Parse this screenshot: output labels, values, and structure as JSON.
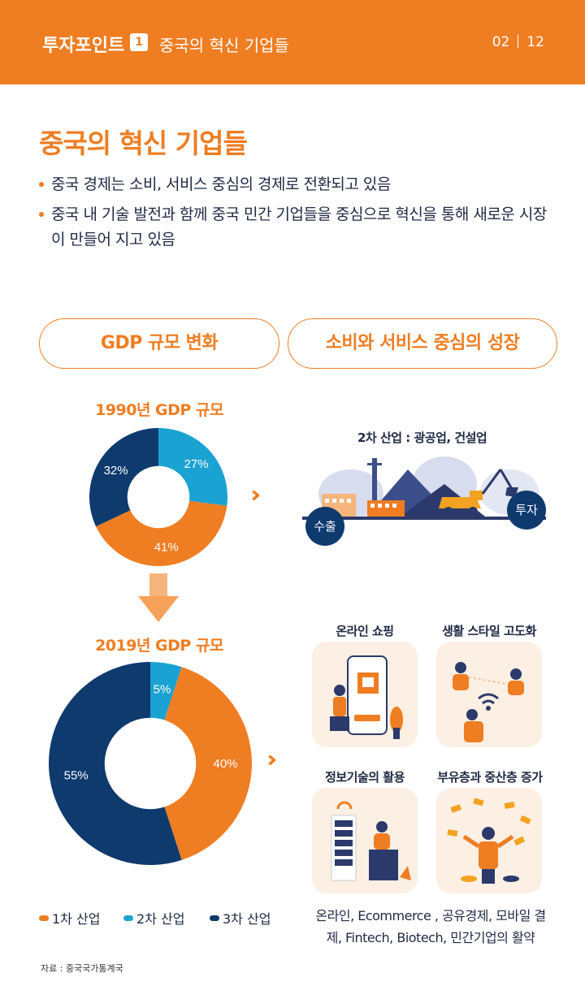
{
  "header": {
    "title": "투자포인트",
    "badge": "1",
    "subtitle": "중국의 혁신 기업들",
    "page_current": "02",
    "page_total": "12"
  },
  "main": {
    "title": "중국의 혁신 기업들",
    "bullets": [
      "중국 경제는 소비, 서비스 중심의 경제로 전환되고 있음",
      "중국 내 기술 발전과 함께 중국 민간 기업들을 중심으로 혁신을 통해 새로운 시장이 만들어 지고 있음"
    ]
  },
  "pills": {
    "left": "GDP 규모 변화",
    "right": "소비와 서비스 중심의 성장"
  },
  "chart_titles": {
    "c1990": "1990년 GDP 규모",
    "c2019": "2019년 GDP 규모"
  },
  "chart_data": [
    {
      "type": "pie",
      "title": "1990년 GDP 규모",
      "categories": [
        "1차 산업",
        "2차 산업",
        "3차 산업"
      ],
      "values": [
        41,
        27,
        32
      ],
      "labels": [
        "41%",
        "27%",
        "32%"
      ]
    },
    {
      "type": "pie",
      "title": "2019년 GDP 규모",
      "categories": [
        "1차 산업",
        "2차 산업",
        "3차 산업"
      ],
      "values": [
        40,
        5,
        55
      ],
      "labels": [
        "40%",
        "5%",
        "55%"
      ]
    }
  ],
  "colors": {
    "primary": "#ef7d22",
    "secondary": "#1aa3d2",
    "tertiary": "#0e3a6e"
  },
  "industry": {
    "label": "2차 산업 : 광공업, 건설업",
    "export": "수출",
    "invest": "투자"
  },
  "tiles": {
    "online": "온라인 쇼핑",
    "lifestyle": "생활 스타일 고도화",
    "it": "정보기술의 활용",
    "wealth": "부유층과 중산층 증가"
  },
  "legend": [
    "1차 산업",
    "2차 산업",
    "3차 산업"
  ],
  "caption": "온라인, Ecommerce , 공유경제, 모바일 결제, Fintech, Biotech, 민간기업의 활약",
  "source": "자료 : 중국국가통계국"
}
